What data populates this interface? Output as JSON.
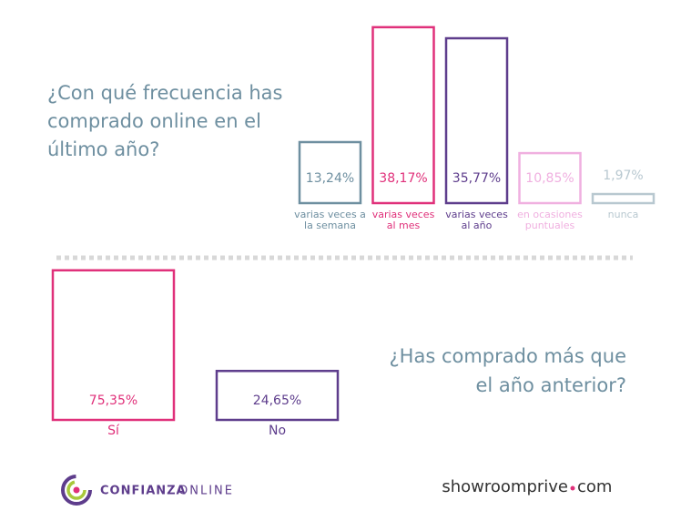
{
  "chart_data": [
    {
      "type": "bar",
      "title": [
        "¿Con qué frecuencia has",
        "comprado online en el",
        "último año?"
      ],
      "categories": [
        [
          "varias veces a",
          "la semana"
        ],
        [
          "varias veces",
          "al mes"
        ],
        [
          "varias veces",
          "al año"
        ],
        [
          "en ocasiones",
          "puntuales"
        ],
        [
          "nunca"
        ]
      ],
      "values": [
        13.24,
        38.17,
        35.77,
        10.85,
        1.97
      ],
      "value_labels": [
        "13,24%",
        "38,17%",
        "35,77%",
        "10,85%",
        "1,97%"
      ],
      "colors": [
        "#6e8fa0",
        "#e0307a",
        "#5e3d8c",
        "#f0b0e0",
        "#b8c8d0"
      ]
    },
    {
      "type": "bar",
      "title": [
        "¿Has comprado más que",
        "el año anterior?"
      ],
      "categories": [
        [
          "Sí"
        ],
        [
          "No"
        ]
      ],
      "values": [
        75.35,
        24.65
      ],
      "value_labels": [
        "75,35%",
        "24,65%"
      ],
      "colors": [
        "#e0307a",
        "#5e3d8c"
      ]
    }
  ],
  "footer": {
    "left_logo": [
      "CONFIANZA",
      "ONLINE"
    ],
    "right_logo": [
      "showroomprive",
      "com"
    ]
  }
}
